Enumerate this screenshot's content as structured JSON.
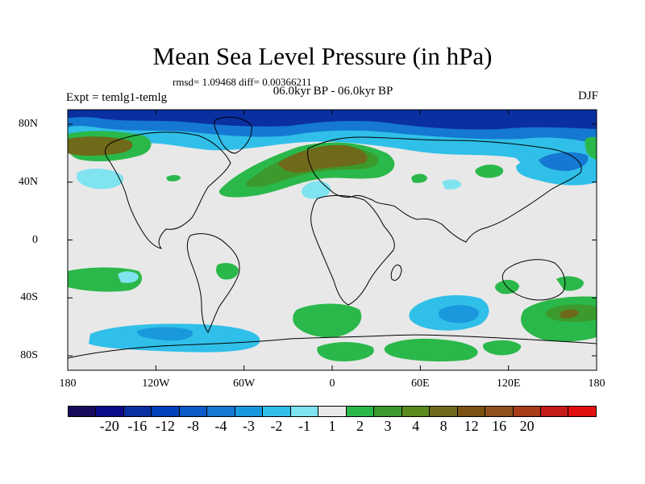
{
  "title": "Mean Sea Level Pressure (in hPa)",
  "stats": "rmsd= 1.09468 diff= 0.00366211",
  "period": "06.0kyr BP - 06.0kyr BP",
  "experiment": "Expt = temlg1-temlg",
  "season": "DJF",
  "axes": {
    "y_ticks": [
      {
        "label": "80N",
        "lat": 80
      },
      {
        "label": "40N",
        "lat": 40
      },
      {
        "label": "0",
        "lat": 0
      },
      {
        "label": "40S",
        "lat": -40
      },
      {
        "label": "80S",
        "lat": -80
      }
    ],
    "x_ticks": [
      {
        "label": "180",
        "lon": -180
      },
      {
        "label": "120W",
        "lon": -120
      },
      {
        "label": "60W",
        "lon": -60
      },
      {
        "label": "0",
        "lon": 0
      },
      {
        "label": "60E",
        "lon": 60
      },
      {
        "label": "120E",
        "lon": 120
      },
      {
        "label": "180",
        "lon": 180
      }
    ]
  },
  "colorbar": {
    "colors": [
      "#1a0a5e",
      "#0c0c8c",
      "#0a2fa0",
      "#0040b8",
      "#0a5ac8",
      "#1578d2",
      "#1a98de",
      "#30bfe8",
      "#7fe3f0",
      "#e8e8e8",
      "#2bb84a",
      "#3c9a2c",
      "#5c8a1e",
      "#6e6a1a",
      "#7a5212",
      "#905020",
      "#a83c18",
      "#c41a1a",
      "#e01010"
    ],
    "labels": [
      "-20",
      "-16",
      "-12",
      "-8",
      "-4",
      "-3",
      "-2",
      "-1",
      "1",
      "2",
      "3",
      "4",
      "8",
      "12",
      "16",
      "20"
    ]
  },
  "palette": {
    "ocean": "#e8e8e8",
    "neg_deep": "#0a2fa0",
    "neg_mid": "#1578d2",
    "neg_light": "#30bfe8",
    "neg_faint": "#7fe3f0",
    "pos_1": "#2bb84a",
    "pos_2": "#3c9a2c",
    "pos_3": "#5c8a1e",
    "pos_4": "#6e6a1a"
  }
}
